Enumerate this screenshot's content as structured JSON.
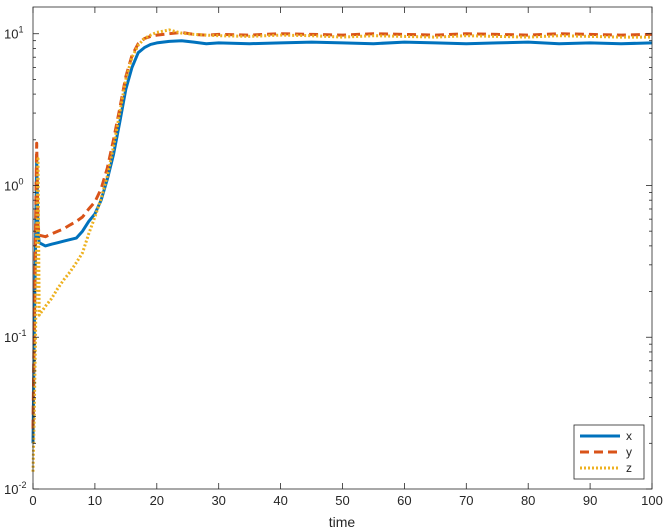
{
  "chart_data": {
    "type": "line",
    "title": "",
    "xlabel": "time",
    "ylabel": "",
    "xlim": [
      0,
      100
    ],
    "ylim": [
      0.01,
      15
    ],
    "yscale": "log",
    "xticks": [
      0,
      10,
      20,
      30,
      40,
      50,
      60,
      70,
      80,
      90,
      100
    ],
    "yticks": [
      {
        "value": 0.01,
        "base": "10",
        "exp": "-2"
      },
      {
        "value": 0.1,
        "base": "10",
        "exp": "-1"
      },
      {
        "value": 1,
        "base": "10",
        "exp": "0"
      },
      {
        "value": 10,
        "base": "10",
        "exp": "1"
      }
    ],
    "grid": false,
    "legend_position": "bottom-right",
    "series": [
      {
        "name": "x",
        "color": "#0072BD",
        "style": "solid",
        "x": [
          0,
          0.2,
          0.4,
          0.6,
          0.8,
          1,
          2,
          3,
          4,
          5,
          6,
          7,
          8,
          9,
          10,
          11,
          12,
          13,
          14,
          15,
          16,
          17,
          18,
          19,
          20,
          22,
          24,
          26,
          28,
          30,
          35,
          40,
          45,
          50,
          55,
          60,
          65,
          70,
          75,
          80,
          85,
          90,
          95,
          100
        ],
        "y": [
          0.02,
          0.1,
          0.4,
          1.5,
          0.5,
          0.42,
          0.4,
          0.41,
          0.42,
          0.43,
          0.44,
          0.45,
          0.5,
          0.58,
          0.65,
          0.8,
          1.1,
          1.6,
          2.6,
          4.3,
          6.0,
          7.5,
          8.1,
          8.5,
          8.7,
          8.9,
          9.0,
          8.8,
          8.6,
          8.7,
          8.6,
          8.7,
          8.8,
          8.7,
          8.6,
          8.8,
          8.7,
          8.6,
          8.7,
          8.8,
          8.6,
          8.7,
          8.6,
          8.7
        ]
      },
      {
        "name": "y",
        "color": "#D95319",
        "style": "dashed",
        "x": [
          0,
          0.2,
          0.4,
          0.6,
          0.8,
          1,
          2,
          3,
          4,
          5,
          6,
          7,
          8,
          9,
          10,
          11,
          12,
          13,
          14,
          15,
          16,
          17,
          18,
          19,
          20,
          22,
          24,
          26,
          28,
          30,
          35,
          40,
          45,
          50,
          55,
          60,
          65,
          70,
          75,
          80,
          85,
          90,
          95,
          100
        ],
        "y": [
          0.025,
          0.12,
          0.5,
          1.9,
          0.55,
          0.47,
          0.46,
          0.48,
          0.5,
          0.52,
          0.55,
          0.58,
          0.62,
          0.7,
          0.78,
          0.95,
          1.3,
          2.0,
          3.2,
          5.2,
          7.2,
          8.6,
          9.3,
          9.6,
          9.8,
          10.0,
          10.2,
          9.9,
          9.8,
          9.9,
          9.8,
          10.0,
          9.9,
          9.8,
          10.0,
          9.9,
          9.8,
          10.0,
          9.9,
          9.8,
          10.0,
          9.9,
          9.8,
          9.9
        ]
      },
      {
        "name": "z",
        "color": "#EDB120",
        "style": "dotted",
        "x": [
          0,
          0.2,
          0.4,
          0.6,
          0.8,
          1,
          2,
          3,
          4,
          5,
          6,
          7,
          8,
          9,
          10,
          11,
          12,
          13,
          14,
          15,
          16,
          17,
          18,
          19,
          20,
          22,
          24,
          26,
          28,
          30,
          35,
          40,
          45,
          50,
          55,
          60,
          65,
          70,
          75,
          80,
          85,
          90,
          95,
          100
        ],
        "y": [
          0.013,
          0.03,
          0.1,
          0.5,
          1.5,
          0.14,
          0.16,
          0.18,
          0.21,
          0.24,
          0.27,
          0.31,
          0.36,
          0.48,
          0.62,
          0.82,
          1.15,
          1.8,
          3.0,
          5.0,
          7.0,
          8.4,
          9.3,
          9.8,
          10.2,
          10.6,
          10.1,
          9.9,
          9.8,
          9.7,
          9.6,
          9.8,
          9.7,
          9.5,
          9.7,
          9.6,
          9.5,
          9.7,
          9.6,
          9.5,
          9.7,
          9.6,
          9.5,
          9.5
        ]
      }
    ]
  }
}
